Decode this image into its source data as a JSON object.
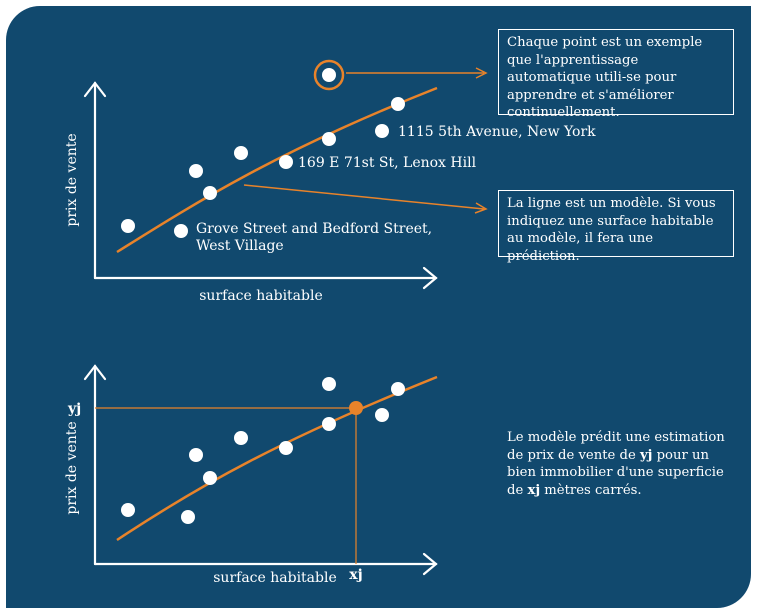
{
  "colors": {
    "background": "#11496e",
    "accent": "#e8832a",
    "foreground": "#ffffff"
  },
  "top_chart": {
    "ylabel": "prix de vente",
    "xlabel": "surface habitable",
    "point_labels": {
      "fifth_avenue": "1115 5th Avenue, New York",
      "lenox_hill": "169 E 71st St, Lenox Hill",
      "west_village_line1": "Grove Street and Bedford Street,",
      "west_village_line2": "West Village"
    }
  },
  "bottom_chart": {
    "ylabel": "prix de vente",
    "xlabel": "surface habitable",
    "y_marker": "yj",
    "x_marker": "xj"
  },
  "callouts": {
    "point_example": "Chaque point est un exemple que l'apprentissage automatique utili-se pour apprendre et s'améliorer continuellement.",
    "line_model": "La ligne est un modèle. Si vous indiquez une surface habitable au modèle, il fera une prédiction."
  },
  "prediction_note": {
    "part1": "Le modèle prédit une estimation de prix de vente de ",
    "yj": "yj",
    "part2": " pour un bien immobilier d'une superficie de ",
    "xj": "xj",
    "part3": " mètres carrés."
  }
}
